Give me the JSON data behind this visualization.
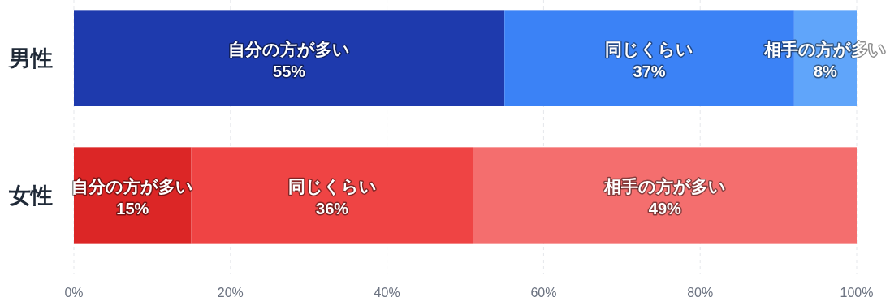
{
  "chart_data": {
    "type": "bar",
    "orientation": "horizontal",
    "stacked": true,
    "categories": [
      "男性",
      "女性"
    ],
    "series": [
      {
        "name": "自分の方が多い",
        "colors": [
          "#1e3aad",
          "#dc2626"
        ],
        "values": [
          55,
          15
        ],
        "value_labels": [
          "55%",
          "15%"
        ]
      },
      {
        "name": "同じくらい",
        "colors": [
          "#3b82f6",
          "#ef4444"
        ],
        "values": [
          37,
          36
        ],
        "value_labels": [
          "37%",
          "36%"
        ]
      },
      {
        "name": "相手の方が多い",
        "colors": [
          "#60a5fa",
          "#f46e6e"
        ],
        "values": [
          8,
          49
        ],
        "value_labels": [
          "8%",
          "49%"
        ]
      }
    ],
    "xlim": [
      0,
      100
    ],
    "xticks": [
      {
        "value": 0,
        "label": "0%"
      },
      {
        "value": 20,
        "label": "20%"
      },
      {
        "value": 40,
        "label": "40%"
      },
      {
        "value": 60,
        "label": "60%"
      },
      {
        "value": 80,
        "label": "80%"
      },
      {
        "value": 100,
        "label": "100%"
      }
    ],
    "grid": "x"
  }
}
